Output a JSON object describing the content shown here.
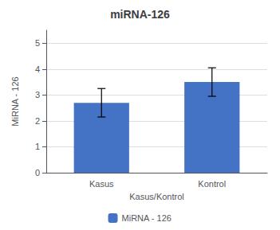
{
  "chart_data": {
    "type": "bar",
    "title": "miRNA-126",
    "xlabel": "Kasus/Kontrol",
    "ylabel": "MiRNA - 126",
    "categories": [
      "Kasus",
      "Kontrol"
    ],
    "series": [
      {
        "name": "MiRNA - 126",
        "color": "#4472C4",
        "values": [
          2.7,
          3.5
        ],
        "errors_lower": [
          0.55,
          0.55
        ],
        "errors_upper": [
          0.55,
          0.55
        ]
      }
    ],
    "ylim": [
      0,
      5.5
    ],
    "yticks": [
      0,
      1,
      2,
      3,
      4,
      5
    ],
    "grid": true,
    "legend": "bottom"
  }
}
